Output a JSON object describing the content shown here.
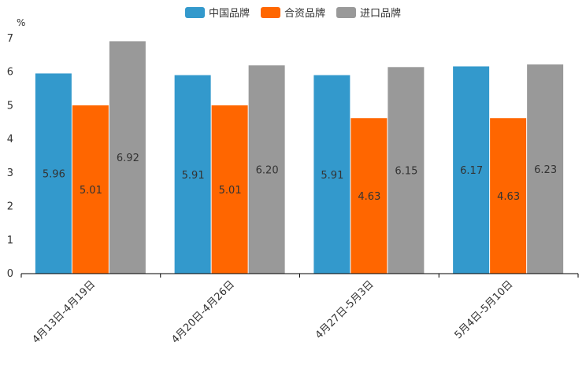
{
  "chart_data": {
    "type": "bar",
    "unit_label": "%",
    "categories": [
      "4月13日-4月19日",
      "4月20日-4月26日",
      "4月27日-5月3日",
      "5月4日-5月10日"
    ],
    "series": [
      {
        "name": "中国品牌",
        "color": "#3399cc",
        "values": [
          5.96,
          5.91,
          5.91,
          6.17
        ],
        "labels": [
          "5.96",
          "5.91",
          "5.91",
          "6.17"
        ]
      },
      {
        "name": "合资品牌",
        "color": "#ff6600",
        "values": [
          5.01,
          5.01,
          4.63,
          4.63
        ],
        "labels": [
          "5.01",
          "5.01",
          "4.63",
          "4.63"
        ]
      },
      {
        "name": "进口品牌",
        "color": "#999999",
        "values": [
          6.92,
          6.2,
          6.15,
          6.23
        ],
        "labels": [
          "6.92",
          "6.20",
          "6.15",
          "6.23"
        ]
      }
    ],
    "ylim": [
      0,
      7
    ],
    "yticks": [
      0,
      1,
      2,
      3,
      4,
      5,
      6,
      7
    ],
    "legend_position": "top-center",
    "grid": false
  }
}
